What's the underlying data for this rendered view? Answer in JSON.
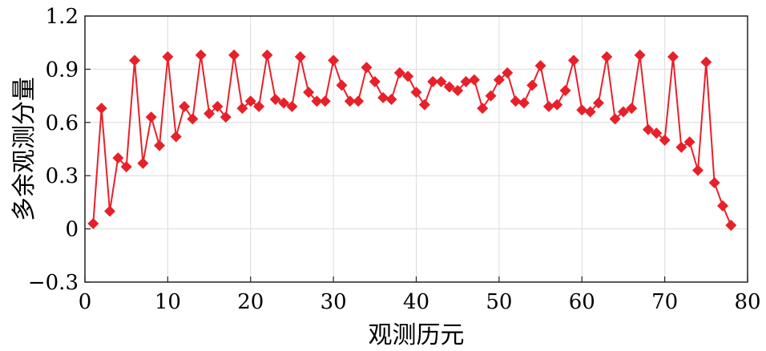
{
  "chart_data": {
    "type": "line",
    "title": "",
    "xlabel": "观测历元",
    "ylabel": "多余观测分量",
    "xlim": [
      0,
      80
    ],
    "ylim": [
      -0.3,
      1.2
    ],
    "xticks": [
      0,
      10,
      20,
      30,
      40,
      50,
      60,
      70,
      80
    ],
    "yticks": [
      -0.3,
      0,
      0.3,
      0.6,
      0.9,
      1.2
    ],
    "xtick_labels": [
      "0",
      "10",
      "20",
      "30",
      "40",
      "50",
      "60",
      "70",
      "80"
    ],
    "ytick_labels": [
      "−0.3",
      "0",
      "0.3",
      "0.6",
      "0.9",
      "1.2"
    ],
    "grid": true,
    "color": "#e8202a",
    "marker": "diamond",
    "series": [
      {
        "x": [
          1,
          2,
          3,
          4,
          5,
          6,
          7,
          8,
          9,
          10,
          11,
          12,
          13,
          14,
          15,
          16,
          17,
          18,
          19,
          20,
          21,
          22,
          23,
          24,
          25,
          26,
          27,
          28,
          29,
          30,
          31,
          32,
          33,
          34,
          35,
          36,
          37,
          38,
          39,
          40,
          41,
          42,
          43,
          44,
          45,
          46,
          47,
          48,
          49,
          50,
          51,
          52,
          53,
          54,
          55,
          56,
          57,
          58,
          59,
          60,
          61,
          62,
          63,
          64,
          65,
          66,
          67,
          68,
          69,
          70,
          71,
          72,
          73,
          74,
          75,
          76,
          77,
          78
        ],
        "y": [
          0.03,
          0.68,
          0.1,
          0.4,
          0.35,
          0.95,
          0.37,
          0.63,
          0.47,
          0.97,
          0.52,
          0.69,
          0.62,
          0.98,
          0.65,
          0.69,
          0.63,
          0.98,
          0.68,
          0.72,
          0.69,
          0.98,
          0.73,
          0.71,
          0.69,
          0.97,
          0.77,
          0.72,
          0.72,
          0.95,
          0.81,
          0.72,
          0.72,
          0.91,
          0.83,
          0.74,
          0.73,
          0.88,
          0.86,
          0.77,
          0.7,
          0.83,
          0.83,
          0.8,
          0.78,
          0.83,
          0.84,
          0.68,
          0.75,
          0.84,
          0.88,
          0.72,
          0.71,
          0.81,
          0.92,
          0.69,
          0.7,
          0.78,
          0.95,
          0.67,
          0.66,
          0.71,
          0.97,
          0.62,
          0.66,
          0.68,
          0.98,
          0.56,
          0.54,
          0.5,
          0.97,
          0.46,
          0.49,
          0.33,
          0.94,
          0.26,
          0.13,
          0.02
        ]
      }
    ]
  }
}
